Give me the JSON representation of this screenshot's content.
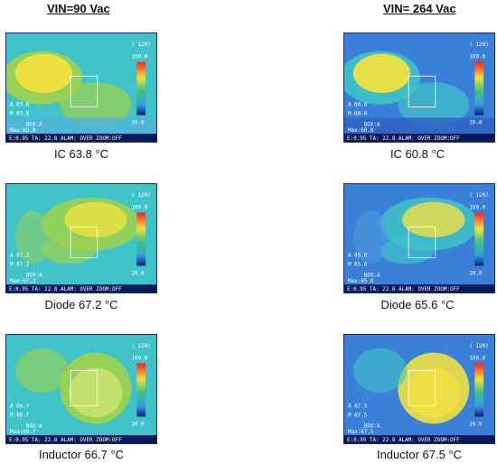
{
  "columns": [
    {
      "heading": "VIN=90 Vac"
    },
    {
      "heading": "VIN= 264 Vac"
    }
  ],
  "images": [
    {
      "id": "ic-90",
      "caption": "IC 63.8  °C",
      "max": "63.8",
      "spot": "63.8",
      "theme": "warm"
    },
    {
      "id": "ic-264",
      "caption": "IC 60.8  °C",
      "max": "60.8",
      "spot": "60.8",
      "theme": "cool"
    },
    {
      "id": "diode-90",
      "caption": "Diode 67.2  °C",
      "max": "67.2",
      "spot": "67.2",
      "theme": "warm"
    },
    {
      "id": "diode-264",
      "caption": "Diode 65.6  °C",
      "max": "65.6",
      "spot": "65.6",
      "theme": "cool"
    },
    {
      "id": "ind-90",
      "caption": "Inductor 66.7  °C",
      "max": "66.7",
      "spot": "66.7",
      "theme": "warm"
    },
    {
      "id": "ind-264",
      "caption": "Inductor 67.5  °C",
      "max": "67.5",
      "spot": "67.5",
      "theme": "cool"
    }
  ],
  "overlay": {
    "status_line": "E:0.95 TA: 22.8 ALAM: OVER ZOOM:OFF",
    "scale_top": "100.0",
    "scale_bottom": "20.0",
    "range": "( 120)",
    "box_label": "BOX:A",
    "max_prefix": "Max:"
  },
  "colors": {
    "hot": "#f0e040",
    "warm": "#9fd24a",
    "mid": "#3fc3c8",
    "cool": "#3a7fd8",
    "cold": "#1c3aa8"
  }
}
